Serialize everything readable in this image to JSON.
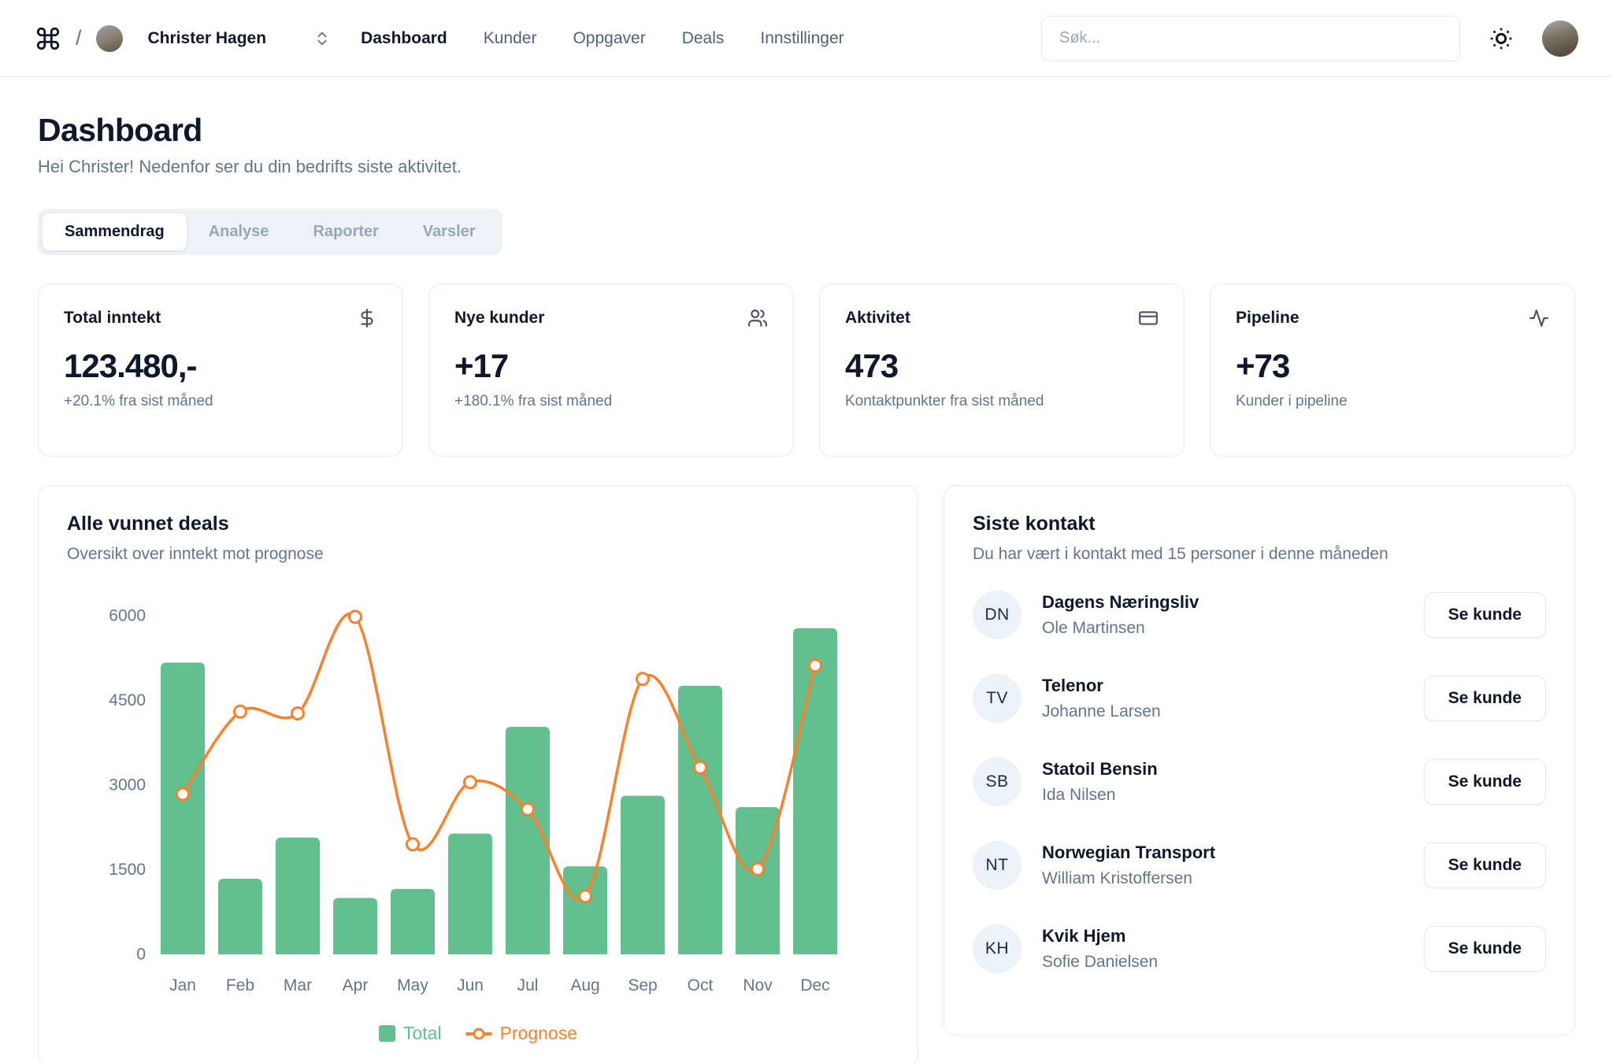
{
  "header": {
    "slash": "/",
    "user": {
      "name": "Christer Hagen"
    },
    "nav": {
      "items": [
        {
          "label": "Dashboard",
          "active": true
        },
        {
          "label": "Kunder",
          "active": false
        },
        {
          "label": "Oppgaver",
          "active": false
        },
        {
          "label": "Deals",
          "active": false
        },
        {
          "label": "Innstillinger",
          "active": false
        }
      ]
    },
    "search": {
      "placeholder": "Søk..."
    }
  },
  "page": {
    "title": "Dashboard",
    "subtitle": "Hei Christer! Nedenfor ser du din bedrifts siste aktivitet."
  },
  "tabs": {
    "items": [
      {
        "label": "Sammendrag",
        "active": true
      },
      {
        "label": "Analyse",
        "active": false
      },
      {
        "label": "Raporter",
        "active": false
      },
      {
        "label": "Varsler",
        "active": false
      }
    ]
  },
  "stats": {
    "cards": [
      {
        "title": "Total inntekt",
        "icon": "dollar-icon",
        "value": "123.480,-",
        "subtext": "+20.1% fra sist måned"
      },
      {
        "title": "Nye kunder",
        "icon": "users-icon",
        "value": "+17",
        "subtext": "+180.1% fra sist måned"
      },
      {
        "title": "Aktivitet",
        "icon": "credit-card-icon",
        "value": "473",
        "subtext": "Kontaktpunkter fra sist måned"
      },
      {
        "title": "Pipeline",
        "icon": "activity-icon",
        "value": "+73",
        "subtext": "Kunder i pipeline"
      }
    ]
  },
  "chart_card": {
    "title": "Alle vunnet deals",
    "subtitle": "Oversikt over inntekt mot prognose"
  },
  "chart_data": {
    "type": "bar",
    "categories": [
      "Jan",
      "Feb",
      "Mar",
      "Apr",
      "May",
      "Jun",
      "Jul",
      "Aug",
      "Sep",
      "Oct",
      "Nov",
      "Dec"
    ],
    "series": [
      {
        "name": "Total",
        "type": "bar",
        "color": "#61c08d",
        "values": [
          5170,
          1340,
          2070,
          1000,
          1160,
          2140,
          4030,
          1560,
          2810,
          4760,
          2610,
          5780
        ]
      },
      {
        "name": "Prognose",
        "type": "line",
        "color": "#f9802d",
        "values": [
          2840,
          4300,
          4270,
          5980,
          1950,
          3050,
          2570,
          1030,
          4880,
          3310,
          1510,
          5120
        ]
      }
    ],
    "ylim": [
      0,
      6000
    ],
    "yticks": [
      0,
      1500,
      3000,
      4500,
      6000
    ],
    "grid": false,
    "legend_position": "bottom"
  },
  "contacts": {
    "title": "Siste kontakt",
    "subtitle": "Du har vært i kontakt med 15 personer i denne måneden",
    "button_label": "Se kunde",
    "items": [
      {
        "initials": "DN",
        "company": "Dagens Næringsliv",
        "person": "Ole Martinsen"
      },
      {
        "initials": "TV",
        "company": "Telenor",
        "person": "Johanne Larsen"
      },
      {
        "initials": "SB",
        "company": "Statoil Bensin",
        "person": "Ida Nilsen"
      },
      {
        "initials": "NT",
        "company": "Norwegian Transport",
        "person": "William Kristoffersen"
      },
      {
        "initials": "KH",
        "company": "Kvik Hjem",
        "person": "Sofie Danielsen"
      }
    ]
  },
  "colors": {
    "green": "#61c08d",
    "orange": "#f9802d",
    "text_dark": "#0f172a",
    "text_gray": "#64748b"
  }
}
